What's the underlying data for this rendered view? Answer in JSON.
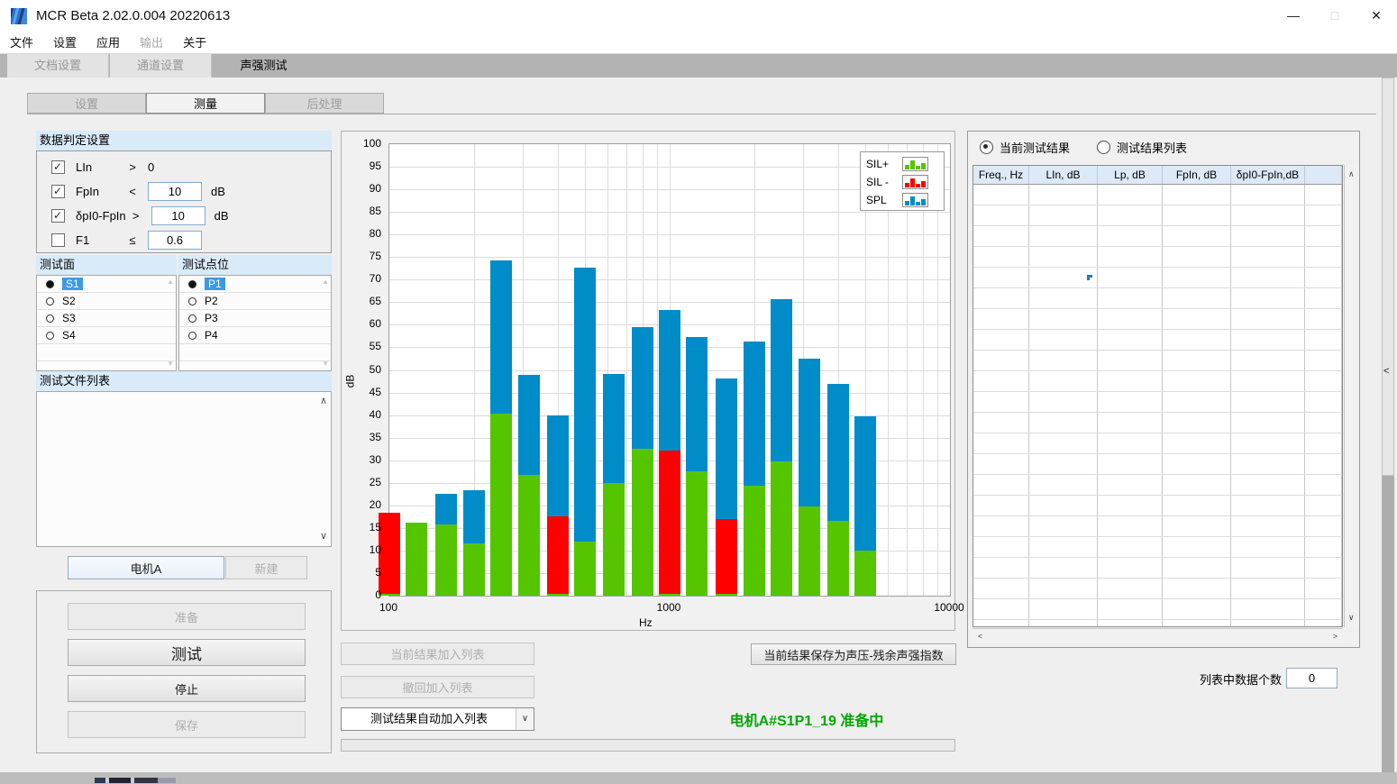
{
  "window": {
    "title": "MCR Beta 2.02.0.004 20220613",
    "controls": {
      "minimize": "—",
      "maximize": "□",
      "close": "✕"
    }
  },
  "menu": {
    "items": [
      {
        "label": "文件",
        "enabled": true
      },
      {
        "label": "设置",
        "enabled": true
      },
      {
        "label": "应用",
        "enabled": true
      },
      {
        "label": "输出",
        "enabled": false
      },
      {
        "label": "关于",
        "enabled": true
      }
    ]
  },
  "main_tabs": [
    {
      "label": "文档设置",
      "state": "disabled"
    },
    {
      "label": "通道设置",
      "state": "disabled"
    },
    {
      "label": "声强测试",
      "state": "active"
    }
  ],
  "sub_tabs": [
    {
      "label": "设置",
      "state": "disabled"
    },
    {
      "label": "测量",
      "state": "active"
    },
    {
      "label": "后处理",
      "state": "disabled"
    }
  ],
  "criteria": {
    "header": "数据判定设置",
    "rows": [
      {
        "checked": true,
        "name": "LIn",
        "op": ">",
        "value": "0",
        "boxed": false,
        "unit": ""
      },
      {
        "checked": true,
        "name": "FpIn",
        "op": "<",
        "value": "10",
        "boxed": true,
        "unit": "dB"
      },
      {
        "checked": true,
        "name": "δpI0-FpIn",
        "op": ">",
        "value": "10",
        "boxed": true,
        "unit": "dB"
      },
      {
        "checked": false,
        "name": "F1",
        "op": "≤",
        "value": "0.6",
        "boxed": true,
        "unit": ""
      }
    ]
  },
  "surface_list": {
    "header": "测试面",
    "items": [
      {
        "label": "S1",
        "selected": true
      },
      {
        "label": "S2",
        "selected": false
      },
      {
        "label": "S3",
        "selected": false
      },
      {
        "label": "S4",
        "selected": false
      }
    ]
  },
  "point_list": {
    "header": "测试点位",
    "items": [
      {
        "label": "P1",
        "selected": true
      },
      {
        "label": "P2",
        "selected": false
      },
      {
        "label": "P3",
        "selected": false
      },
      {
        "label": "P4",
        "selected": false
      }
    ]
  },
  "file_list": {
    "header": "测试文件列表",
    "items": []
  },
  "motor": {
    "name_button": "电机A",
    "new_button": "新建",
    "new_enabled": false
  },
  "control_buttons": [
    {
      "label": "准备",
      "enabled": false,
      "big": false
    },
    {
      "label": "测试",
      "enabled": true,
      "big": true
    },
    {
      "label": "停止",
      "enabled": true,
      "big": false
    },
    {
      "label": "保存",
      "enabled": false,
      "big": false
    }
  ],
  "chart_data": {
    "type": "bar",
    "title": "",
    "xlabel": "Hz",
    "ylabel": "dB",
    "x_scale": "log",
    "xlim": [
      100,
      10000
    ],
    "ylim": [
      0,
      100
    ],
    "y_tick_step": 5,
    "x_ticks": [
      100,
      1000,
      10000
    ],
    "grid": true,
    "legend_position": "top-right",
    "legend": [
      {
        "label": "SIL+",
        "color": "#55C500"
      },
      {
        "label": "SIL -",
        "color": "#FF0000"
      },
      {
        "label": "SPL",
        "color": "#008CC8"
      }
    ],
    "colors": {
      "sil_plus": "#55C500",
      "sil_minus": "#FF0000",
      "spl": "#008CC8"
    },
    "bars": [
      {
        "freq": 100,
        "sil": 18.4,
        "sil_sign": "-",
        "spl": 18.4
      },
      {
        "freq": 125,
        "sil": 16.1,
        "sil_sign": "+",
        "spl": 16.1
      },
      {
        "freq": 160,
        "sil": 15.8,
        "sil_sign": "+",
        "spl": 22.5
      },
      {
        "freq": 200,
        "sil": 11.5,
        "sil_sign": "+",
        "spl": 23.3
      },
      {
        "freq": 250,
        "sil": 40.3,
        "sil_sign": "+",
        "spl": 74.2
      },
      {
        "freq": 315,
        "sil": 26.8,
        "sil_sign": "+",
        "spl": 49.0
      },
      {
        "freq": 400,
        "sil": 17.5,
        "sil_sign": "-",
        "spl": 40.0
      },
      {
        "freq": 500,
        "sil": 12.0,
        "sil_sign": "+",
        "spl": 72.7
      },
      {
        "freq": 630,
        "sil": 25.0,
        "sil_sign": "+",
        "spl": 49.2
      },
      {
        "freq": 800,
        "sil": 32.5,
        "sil_sign": "+",
        "spl": 59.5
      },
      {
        "freq": 1000,
        "sil": 32.2,
        "sil_sign": "-",
        "spl": 63.2
      },
      {
        "freq": 1250,
        "sil": 27.6,
        "sil_sign": "+",
        "spl": 57.2
      },
      {
        "freq": 1600,
        "sil": 17.0,
        "sil_sign": "-",
        "spl": 48.2
      },
      {
        "freq": 2000,
        "sil": 24.4,
        "sil_sign": "+",
        "spl": 56.2
      },
      {
        "freq": 2500,
        "sil": 29.8,
        "sil_sign": "+",
        "spl": 65.7
      },
      {
        "freq": 3150,
        "sil": 19.8,
        "sil_sign": "+",
        "spl": 52.5
      },
      {
        "freq": 4000,
        "sil": 16.5,
        "sil_sign": "+",
        "spl": 47.0
      },
      {
        "freq": 5000,
        "sil": 10.0,
        "sil_sign": "+",
        "spl": 39.7
      }
    ]
  },
  "list_actions": {
    "add_current": "当前结果加入列表",
    "undo_add": "撤回加入列表",
    "auto_add_dropdown": "测试结果自动加入列表",
    "save_as": "当前结果保存为声压-残余声强指数"
  },
  "status": {
    "text": "电机A#S1P1_19  准备中",
    "color": "#00A800"
  },
  "results_panel": {
    "radio_current": "当前测试结果",
    "radio_list": "测试结果列表",
    "current_selected": true,
    "table": {
      "columns": [
        "Freq., Hz",
        "LIn, dB",
        "Lp, dB",
        "FpIn, dB",
        "δpI0-FpIn,dB",
        ""
      ],
      "rows": []
    },
    "count_label": "列表中数据个数",
    "count_value": "0"
  },
  "icons": {
    "up": "∧",
    "down": "∨",
    "left": "<",
    "right": ">",
    "list_up": "▲",
    "list_down": "▼",
    "dropdown": "∨",
    "splitter": "<"
  }
}
